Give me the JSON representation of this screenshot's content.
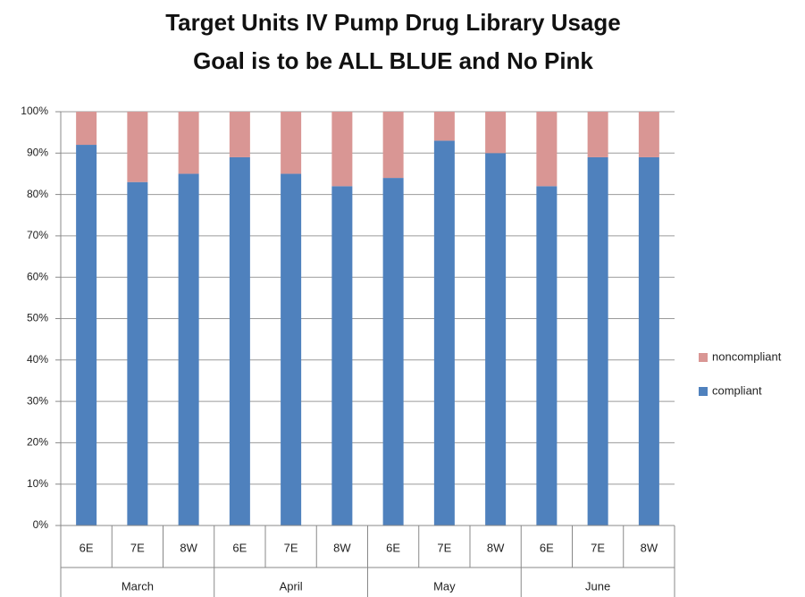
{
  "chart_data": {
    "type": "stacked_bar",
    "title": "Target Units IV Pump Drug Library Usage",
    "subtitle": "Goal is to be ALL BLUE and No Pink",
    "categories": [
      "6E",
      "7E",
      "8W",
      "6E",
      "7E",
      "8W",
      "6E",
      "7E",
      "8W",
      "6E",
      "7E",
      "8W"
    ],
    "groups": [
      "March",
      "April",
      "May",
      "June"
    ],
    "series": [
      {
        "name": "compliant",
        "color": "#4f81bd",
        "values": [
          92,
          83,
          85,
          89,
          85,
          82,
          84,
          93,
          90,
          82,
          89,
          89
        ]
      },
      {
        "name": "noncompliant",
        "color": "#d99694",
        "values": [
          8,
          17,
          15,
          11,
          15,
          18,
          16,
          7,
          10,
          18,
          11,
          11
        ]
      }
    ],
    "ylim": [
      0,
      100
    ],
    "yticks": [
      {
        "value": 0,
        "label": "0%"
      },
      {
        "value": 10,
        "label": "10%"
      },
      {
        "value": 20,
        "label": "20%"
      },
      {
        "value": 30,
        "label": "30%"
      },
      {
        "value": 40,
        "label": "40%"
      },
      {
        "value": 50,
        "label": "50%"
      },
      {
        "value": 60,
        "label": "60%"
      },
      {
        "value": 70,
        "label": "70%"
      },
      {
        "value": 80,
        "label": "80%"
      },
      {
        "value": 90,
        "label": "90%"
      },
      {
        "value": 100,
        "label": "100%"
      }
    ],
    "grid": true,
    "legend": "right"
  }
}
